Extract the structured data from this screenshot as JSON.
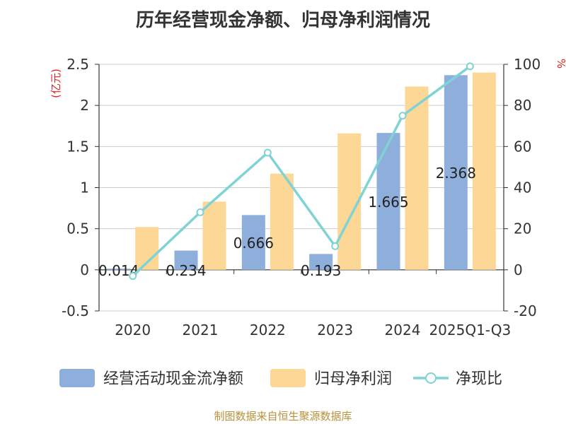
{
  "chart_data": {
    "type": "bar",
    "title": "历年经营现金净额、归母净利润情况",
    "categories": [
      "2020",
      "2021",
      "2022",
      "2023",
      "2024",
      "2025Q1-Q3"
    ],
    "series": [
      {
        "name": "经营活动现金流净额",
        "axis": "left",
        "type": "bar",
        "values": [
          0.014,
          0.234,
          0.666,
          0.193,
          1.665,
          2.368
        ],
        "labels": [
          "0.014",
          "0.234",
          "0.666",
          "0.193",
          "1.665",
          "2.368"
        ]
      },
      {
        "name": "归母净利润",
        "axis": "left",
        "type": "bar",
        "values": [
          0.52,
          0.83,
          1.17,
          1.66,
          2.23,
          2.4
        ]
      },
      {
        "name": "净现比",
        "axis": "right",
        "type": "line",
        "values": [
          -3,
          28,
          57,
          11.5,
          75,
          99
        ]
      }
    ],
    "y_left": {
      "label": "(亿元)",
      "ylim": [
        -0.5,
        2.5
      ],
      "ticks": [
        -0.5,
        0,
        0.5,
        1,
        1.5,
        2,
        2.5
      ],
      "tick_labels": [
        "-0.5",
        "0",
        "0.5",
        "1",
        "1.5",
        "2",
        "2.5"
      ]
    },
    "y_right": {
      "label": "%",
      "ylim": [
        -20,
        100
      ],
      "ticks": [
        -20,
        0,
        20,
        40,
        60,
        80,
        100
      ],
      "tick_labels": [
        "-20",
        "0",
        "20",
        "40",
        "60",
        "80",
        "100"
      ]
    },
    "grid": true,
    "legend_position": "bottom",
    "source": "制图数据来自恒生聚源数据库"
  },
  "colors": {
    "cash_bar": "#8eaedb",
    "profit_bar": "#fdd796",
    "ratio_line": "#7fd3d4",
    "grid": "#cccccc",
    "axis": "#333333",
    "unit": "#e02020",
    "source": "#b8913a"
  }
}
